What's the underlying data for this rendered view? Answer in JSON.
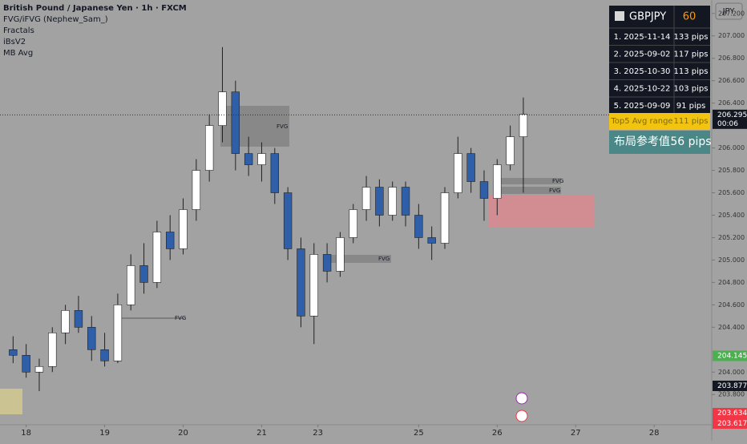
{
  "header": {
    "title": "British Pound / Japanese Yen · 1h · FXCM",
    "indicators": [
      "FVG/iFVG (Nephew_Sam_)",
      "Fractals",
      "iBsV2",
      "MB Avg"
    ]
  },
  "currency_button": "JPY",
  "chart_data": {
    "type": "candlestick",
    "x": [
      1,
      2,
      3,
      4,
      5,
      6,
      7,
      8,
      9,
      10,
      11,
      12,
      13,
      14,
      15,
      16,
      17,
      18,
      19,
      20,
      21,
      22,
      23,
      24,
      25,
      26,
      27,
      28,
      29,
      30,
      31,
      32,
      33,
      34,
      35,
      36,
      37,
      38,
      39,
      40
    ],
    "open": [
      204.2,
      204.15,
      204.0,
      204.05,
      204.35,
      204.55,
      204.4,
      204.2,
      204.1,
      204.6,
      204.95,
      204.8,
      205.25,
      205.1,
      205.45,
      205.8,
      206.2,
      206.5,
      205.95,
      205.85,
      205.95,
      205.6,
      205.1,
      204.5,
      205.05,
      204.9,
      205.2,
      205.45,
      205.65,
      205.4,
      205.65,
      205.4,
      205.2,
      205.15,
      205.6,
      205.95,
      205.7,
      205.55,
      205.85,
      206.1
    ],
    "high": [
      204.32,
      204.25,
      204.12,
      204.4,
      204.6,
      204.68,
      204.5,
      204.35,
      204.7,
      205.05,
      205.15,
      205.35,
      205.4,
      205.55,
      205.9,
      206.3,
      206.9,
      206.6,
      206.1,
      206.05,
      206.0,
      205.65,
      205.2,
      205.15,
      205.15,
      205.25,
      205.5,
      205.75,
      205.72,
      205.7,
      205.7,
      205.5,
      205.3,
      205.65,
      206.1,
      206.0,
      205.8,
      205.9,
      206.2,
      206.45
    ],
    "low": [
      204.08,
      203.95,
      203.83,
      204.0,
      204.25,
      204.35,
      204.1,
      204.05,
      204.08,
      204.55,
      204.7,
      204.75,
      205.0,
      205.05,
      205.35,
      205.7,
      206.05,
      205.8,
      205.75,
      205.7,
      205.5,
      205.0,
      204.4,
      204.25,
      204.8,
      204.85,
      205.15,
      205.35,
      205.3,
      205.35,
      205.3,
      205.1,
      205.0,
      205.1,
      205.55,
      205.6,
      205.35,
      205.4,
      205.8,
      205.6
    ],
    "close": [
      204.15,
      204.0,
      204.05,
      204.35,
      204.55,
      204.4,
      204.2,
      204.1,
      204.6,
      204.95,
      204.8,
      205.25,
      205.1,
      205.45,
      205.8,
      206.2,
      206.5,
      205.95,
      205.85,
      205.95,
      205.6,
      205.1,
      204.5,
      205.05,
      204.9,
      205.2,
      205.45,
      205.65,
      205.4,
      205.65,
      205.4,
      205.2,
      205.15,
      205.6,
      205.95,
      205.7,
      205.55,
      205.85,
      206.1,
      206.3
    ],
    "up_color": "#ffffff",
    "down_color": "#2e5fa8",
    "xlim": [
      0,
      54.4
    ],
    "xticks": [
      {
        "value": 2,
        "label": "18"
      },
      {
        "value": 8,
        "label": "19"
      },
      {
        "value": 14,
        "label": "20"
      },
      {
        "value": 20,
        "label": "21"
      },
      {
        "value": 24.3,
        "label": "23"
      },
      {
        "value": 32,
        "label": "25"
      },
      {
        "value": 38,
        "label": "26"
      },
      {
        "value": 44,
        "label": "27"
      },
      {
        "value": 50,
        "label": "28"
      }
    ],
    "ylim": [
      203.53,
      207.32
    ],
    "yticks": [
      {
        "value": 207.2,
        "label": "207.200"
      },
      {
        "value": 207,
        "label": "207.000"
      },
      {
        "value": 206.8,
        "label": "206.800"
      },
      {
        "value": 206.6,
        "label": "206.600"
      },
      {
        "value": 206.4,
        "label": "206.400"
      },
      {
        "value": 206,
        "label": "206.000"
      },
      {
        "value": 205.8,
        "label": "205.800"
      },
      {
        "value": 205.6,
        "label": "205.600"
      },
      {
        "value": 205.4,
        "label": "205.400"
      },
      {
        "value": 205.2,
        "label": "205.200"
      },
      {
        "value": 205,
        "label": "205.000"
      },
      {
        "value": 204.8,
        "label": "204.800"
      },
      {
        "value": 204.6,
        "label": "204.600"
      },
      {
        "value": 204.4,
        "label": "204.400"
      },
      {
        "value": 204,
        "label": "204.000"
      },
      {
        "value": 203.8,
        "label": "203.800"
      }
    ],
    "price_tags": [
      {
        "value": 206.295,
        "color": "#131722",
        "timer": "00:06"
      },
      {
        "value": 204.145,
        "color": "#4caf50"
      },
      {
        "value": 203.877,
        "color": "#131722"
      },
      {
        "value": 203.634,
        "color": "#f23645"
      },
      {
        "value": 203.617,
        "color": "#f23645"
      }
    ],
    "annotations": [
      "FVG",
      "FVG",
      "FVG",
      "FVG",
      "FVG"
    ]
  },
  "table": {
    "symbol": "GBPJPY",
    "timeframe": "60",
    "rows": [
      [
        "1. 2025-11-14",
        "133 pips"
      ],
      [
        "2. 2025-09-02",
        "117 pips"
      ],
      [
        "3. 2025-10-30",
        "113 pips"
      ],
      [
        "4. 2025-10-22",
        "103 pips"
      ],
      [
        "5. 2025-09-09",
        "91 pips"
      ]
    ],
    "avg": [
      "Top5 Avg range",
      "111 pips"
    ],
    "reference": [
      "布局参考值",
      "56 pips"
    ]
  }
}
